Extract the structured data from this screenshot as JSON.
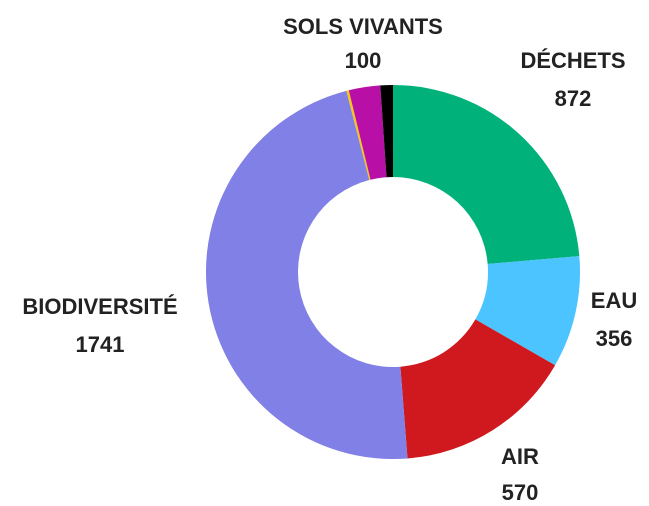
{
  "chart_data": {
    "type": "donut",
    "categories": [
      "DÉCHETS",
      "EAU",
      "AIR",
      "BIODIVERSITÉ",
      null,
      "SOLS VIVANTS",
      null
    ],
    "values": [
      872,
      356,
      570,
      1741,
      8,
      100,
      40
    ],
    "colors": [
      "#00b27a",
      "#4cc4ff",
      "#d0181f",
      "#8080e6",
      "#f5c518",
      "#b80fa6",
      "#000000"
    ]
  }
}
